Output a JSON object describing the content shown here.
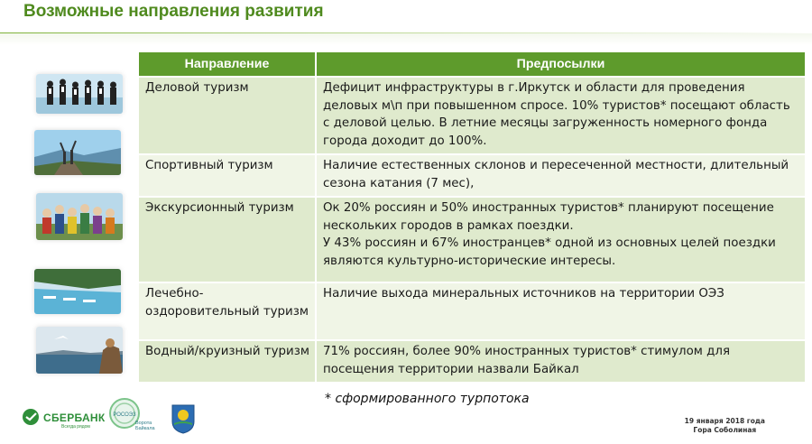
{
  "slide": {
    "title": "Возможные направления развития"
  },
  "table": {
    "headers": [
      "Направление",
      "Предпосылки"
    ],
    "rows": [
      {
        "direction": "Деловой туризм",
        "premise": "Дефицит инфраструктуры в г.Иркутск и области для проведения деловых м\\п при повышенном спросе. 10% туристов* посещают область с деловой целью. В летние месяцы загруженность номерного фонда города доходит до 100%."
      },
      {
        "direction": "Спортивный туризм",
        "premise": "Наличие естественных склонов и пересеченной местности, длительный сезона катания (7 мес),"
      },
      {
        "direction": "Экскурсионный туризм",
        "premise": "Ок 20% россиян и 50% иностранных туристов* планируют посещение нескольких городов в рамках поездки.\nУ 43% россиян и 67% иностранцев* одной из основных целей поездки являются культурно-исторические интересы."
      },
      {
        "direction": "Лечебно-оздоровительный туризм",
        "premise": "Наличие выхода минеральных источников на территории ОЭЗ"
      },
      {
        "direction": "Водный/круизный туризм",
        "premise": "71% россиян, более 90% иностранных туристов* стимулом для посещения территории назвали Байкал"
      }
    ]
  },
  "footnote": "* сформированного турпотока",
  "footer": {
    "sber_name": "СБЕРБАНК",
    "sber_tagline": "Всегда рядом",
    "rososez_label": "РОСОЭЗ",
    "rososez_caption": "Ворота Байкала",
    "date": "19 января 2018 года",
    "place": "Гора Соболиная"
  },
  "colors": {
    "accent": "#5e9b2c",
    "title": "#4f8a1e",
    "row_odd": "#dfeacd",
    "row_even": "#f0f5e6"
  },
  "icons": [
    "business-photo",
    "hiking-photo",
    "tour-group-photo",
    "spa-pool-photo",
    "lake-cruise-photo",
    "sber-logo-icon",
    "rososez-logo-icon",
    "coat-of-arms-icon"
  ]
}
